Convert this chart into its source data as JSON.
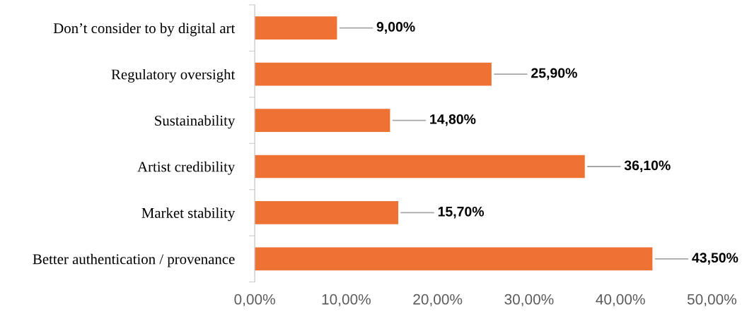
{
  "chart_data": {
    "type": "bar",
    "orientation": "horizontal",
    "categories": [
      "Don’t consider to by digital art",
      "Regulatory oversight",
      "Sustainability",
      "Artist credibility",
      "Market stability",
      "Better authentication / provenance"
    ],
    "values": [
      9.0,
      25.9,
      14.8,
      36.1,
      15.7,
      43.5
    ],
    "value_labels": [
      "9,00%",
      "25,90%",
      "14,80%",
      "36,10%",
      "15,70%",
      "43,50%"
    ],
    "color": "#ed7233",
    "xlim": [
      0,
      50
    ],
    "xticks": [
      {
        "value": 0,
        "label": "0,00%"
      },
      {
        "value": 10,
        "label": "10,00%"
      },
      {
        "value": 20,
        "label": "20,00%"
      },
      {
        "value": 30,
        "label": "30,00%"
      },
      {
        "value": 40,
        "label": "40,00%"
      },
      {
        "value": 50,
        "label": "50,00%"
      }
    ],
    "grid": false,
    "legend": false
  }
}
